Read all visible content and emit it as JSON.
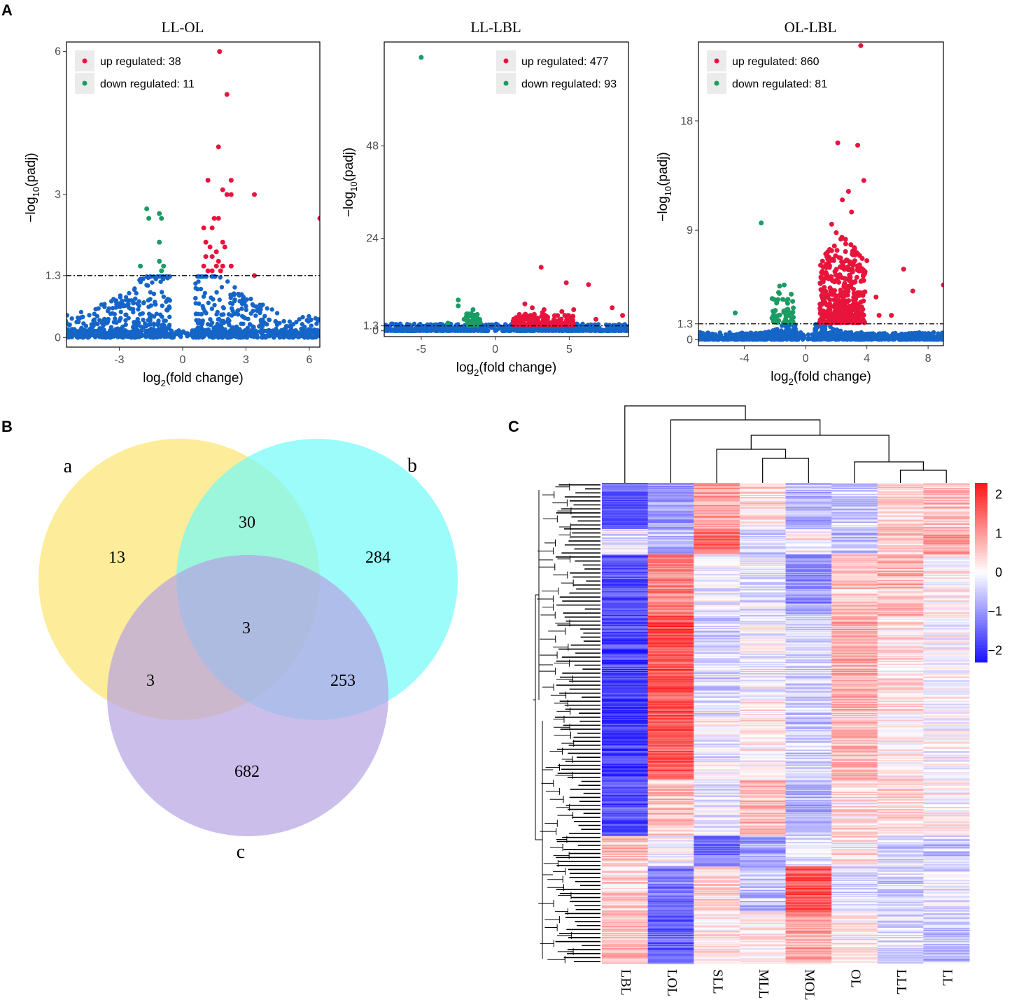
{
  "panels": {
    "a": "A",
    "b": "B",
    "c": "C"
  },
  "volcano": [
    {
      "title": "LL-OL",
      "xlabel": "log2(fold change)",
      "xlabel_main": "log",
      "xlabel_sub": "2",
      "xlabel_rest": "(fold change)",
      "ylabel_main": "−log",
      "ylabel_sub": "10",
      "ylabel_rest": "(padj)",
      "xlim": [
        -5.5,
        6.5
      ],
      "ylim": [
        -0.2,
        6.2
      ],
      "xticks": [
        -3,
        0,
        3,
        6
      ],
      "xtick_labels": [
        "-3",
        "0",
        "3",
        "6"
      ],
      "yticks": [
        0,
        1.3,
        3,
        6
      ],
      "ytick_labels": [
        "0",
        "1.3",
        "3",
        "6"
      ],
      "threshold": 1.3,
      "legend": [
        {
          "label": "up regulated: 38",
          "color": "#e8143c"
        },
        {
          "label": "down regulated: 11",
          "color": "#1a9c64"
        }
      ],
      "up": [
        [
          1.75,
          6.0
        ],
        [
          2.1,
          5.1
        ],
        [
          1.7,
          4.0
        ],
        [
          1.2,
          3.3
        ],
        [
          2.3,
          3.3
        ],
        [
          1.9,
          3.1
        ],
        [
          2.1,
          3.0
        ],
        [
          2.3,
          3.0
        ],
        [
          3.4,
          3.0
        ],
        [
          1.5,
          2.5
        ],
        [
          1.7,
          2.5
        ],
        [
          1.0,
          2.3
        ],
        [
          1.4,
          2.3
        ],
        [
          1.1,
          2.0
        ],
        [
          1.9,
          2.0
        ],
        [
          1.3,
          1.9
        ],
        [
          1.6,
          1.8
        ],
        [
          2.0,
          1.9
        ],
        [
          1.1,
          1.7
        ],
        [
          1.4,
          1.7
        ],
        [
          1.7,
          1.6
        ],
        [
          1.0,
          1.5
        ],
        [
          1.6,
          1.5
        ],
        [
          1.9,
          1.5
        ],
        [
          2.3,
          1.5
        ],
        [
          1.2,
          1.4
        ],
        [
          1.4,
          1.4
        ],
        [
          1.8,
          1.4
        ],
        [
          3.4,
          1.3
        ],
        [
          6.5,
          2.5
        ]
      ],
      "down": [
        [
          -1.7,
          2.7
        ],
        [
          -1.1,
          2.6
        ],
        [
          -1.6,
          2.5
        ],
        [
          -1.0,
          2.5
        ],
        [
          -1.1,
          2.0
        ],
        [
          -1.1,
          1.6
        ],
        [
          -2.0,
          1.5
        ],
        [
          -0.9,
          1.5
        ],
        [
          -1.0,
          1.4
        ]
      ],
      "scatter": {
        "min": 0.1,
        "max": 6.0,
        "spread": 2.0,
        "scale": 1.0,
        "cut": 1.28,
        "count": 700,
        "edge": 2.2,
        "seed": 11
      }
    },
    {
      "title": "LL-LBL",
      "xlabel": "log2(fold change)",
      "xlabel_main": "log",
      "xlabel_sub": "2",
      "xlabel_rest": "(fold change)",
      "ylabel_main": "−log",
      "ylabel_sub": "10",
      "ylabel_rest": "(padj)",
      "xlim": [
        -7.5,
        9
      ],
      "ylim": [
        -1.5,
        75
      ],
      "xticks": [
        -5,
        0,
        5
      ],
      "xtick_labels": [
        "-5",
        "0",
        "5"
      ],
      "yticks": [
        0,
        1.3,
        24,
        48
      ],
      "ytick_labels": [
        "0",
        "1.3",
        "24",
        "48"
      ],
      "threshold": 1.3,
      "legend": [
        {
          "label": "up regulated: 477",
          "color": "#e8143c"
        },
        {
          "label": "down regulated: 93",
          "color": "#1a9c64"
        }
      ],
      "up": [
        [
          3.1,
          16.5
        ],
        [
          4.8,
          12.5
        ],
        [
          6.3,
          12.0
        ],
        [
          7.9,
          6.0
        ],
        [
          2.0,
          7.0
        ],
        [
          2.5,
          6.0
        ],
        [
          3.3,
          5.5
        ],
        [
          4.5,
          5.0
        ],
        [
          5.3,
          5.5
        ],
        [
          6.8,
          3.0
        ],
        [
          8.6,
          4.0
        ],
        [
          2.4,
          4.0
        ],
        [
          1.6,
          3.0
        ]
      ],
      "down": [
        [
          -5.0,
          71.0
        ],
        [
          -2.5,
          8.0
        ],
        [
          -2.5,
          6.5
        ],
        [
          -1.5,
          5.5
        ],
        [
          -2.1,
          3.0
        ],
        [
          -3.2,
          2.0
        ]
      ],
      "upcloud": {
        "xmin": 1.2,
        "xmax": 5.3,
        "ymin": 1.4,
        "ymax": 5.0,
        "count": 180,
        "seed": 5
      },
      "downcloud": {
        "xmin": -2.0,
        "xmax": -1.0,
        "ymin": 1.4,
        "ymax": 4.5,
        "count": 40,
        "seed": 7
      },
      "scatter": {
        "min": 0.1,
        "max": 7.0,
        "spread": 1.3,
        "scale": 1.0,
        "cut": 1.25,
        "count": 700,
        "edge": 3.0,
        "seed": 23
      }
    },
    {
      "title": "OL-LBL",
      "xlabel": "log2(fold change)",
      "xlabel_main": "log",
      "xlabel_sub": "2",
      "xlabel_rest": "(fold change)",
      "ylabel_main": "−log",
      "ylabel_sub": "10",
      "ylabel_rest": "(padj)",
      "xlim": [
        -7,
        9
      ],
      "ylim": [
        -0.5,
        24.5
      ],
      "xticks": [
        -4,
        0,
        4,
        8
      ],
      "xtick_labels": [
        "-4",
        "0",
        "4",
        "8"
      ],
      "yticks": [
        0,
        1.3,
        9,
        18
      ],
      "ytick_labels": [
        "0",
        "1.3",
        "9",
        "18"
      ],
      "threshold": 1.3,
      "legend": [
        {
          "label": "up regulated: 860",
          "color": "#e8143c"
        },
        {
          "label": "down regulated: 81",
          "color": "#1a9c64"
        }
      ],
      "up": [
        [
          3.6,
          24.2
        ],
        [
          2.1,
          16.2
        ],
        [
          3.4,
          16.0
        ],
        [
          3.8,
          13.1
        ],
        [
          2.8,
          12.2
        ],
        [
          2.4,
          11.5
        ],
        [
          3.0,
          10.5
        ],
        [
          1.7,
          9.5
        ],
        [
          2.0,
          8.8
        ],
        [
          3.2,
          7.5
        ],
        [
          4.0,
          6.5
        ],
        [
          6.4,
          5.8
        ],
        [
          7.0,
          4.0
        ],
        [
          9.0,
          4.5
        ],
        [
          4.6,
          3.5
        ],
        [
          4.8,
          2.0
        ],
        [
          5.6,
          2.0
        ],
        [
          2.4,
          6.0
        ],
        [
          1.4,
          7.0
        ]
      ],
      "down": [
        [
          -2.9,
          9.6
        ],
        [
          -4.6,
          2.2
        ],
        [
          -1.7,
          4.4
        ],
        [
          -1.4,
          4.5
        ]
      ],
      "upcloud": {
        "xmin": 0.9,
        "xmax": 3.9,
        "ymin": 1.4,
        "ymax": 8.5,
        "count": 420,
        "seed": 9
      },
      "downcloud": {
        "xmin": -2.2,
        "xmax": -0.8,
        "ymin": 1.4,
        "ymax": 4.0,
        "count": 55,
        "seed": 13
      },
      "scatter": {
        "min": 0.1,
        "max": 7.5,
        "spread": 1.0,
        "scale": 1.0,
        "cut": 1.25,
        "count": 800,
        "edge": 3.5,
        "seed": 31
      }
    }
  ],
  "venn": {
    "labels": {
      "a": "a",
      "b": "b",
      "c": "c"
    },
    "colors": {
      "a": "#fce46e",
      "b": "#71fbf8",
      "c": "#b6a2e2"
    },
    "regions": {
      "a_only": "13",
      "b_only": "284",
      "c_only": "682",
      "ab": "30",
      "ac": "3",
      "bc": "253",
      "abc": "3"
    }
  },
  "chart_data": [
    {
      "type": "scatter",
      "title": "LL-OL",
      "xlabel": "log2(fold change)",
      "ylabel": "-log10(padj)",
      "xlim": [
        -5.5,
        6.5
      ],
      "ylim": [
        0,
        6.2
      ],
      "threshold": 1.3,
      "series": [
        {
          "name": "up regulated: 38",
          "count": 38
        },
        {
          "name": "down regulated: 11",
          "count": 11
        }
      ]
    },
    {
      "type": "scatter",
      "title": "LL-LBL",
      "xlabel": "log2(fold change)",
      "ylabel": "-log10(padj)",
      "xlim": [
        -7.5,
        9
      ],
      "ylim": [
        0,
        75
      ],
      "threshold": 1.3,
      "series": [
        {
          "name": "up regulated: 477",
          "count": 477
        },
        {
          "name": "down regulated: 93",
          "count": 93
        }
      ]
    },
    {
      "type": "scatter",
      "title": "OL-LBL",
      "xlabel": "log2(fold change)",
      "ylabel": "-log10(padj)",
      "xlim": [
        -7,
        9
      ],
      "ylim": [
        0,
        24.5
      ],
      "threshold": 1.3,
      "series": [
        {
          "name": "up regulated: 860",
          "count": 860
        },
        {
          "name": "down regulated: 81",
          "count": 81
        }
      ]
    },
    {
      "type": "venn",
      "sets": [
        "a",
        "b",
        "c"
      ],
      "values": {
        "a": 13,
        "b": 284,
        "c": 682,
        "ab": 30,
        "ac": 3,
        "bc": 253,
        "abc": 3
      }
    },
    {
      "type": "heatmap",
      "columns": [
        "LBL",
        "LOL",
        "SLL",
        "MLL",
        "MOL",
        "OL",
        "LLL",
        "LL"
      ],
      "colorbar": {
        "ticks": [
          2,
          1,
          0,
          -1,
          -2
        ],
        "labels": [
          "2",
          "1",
          "0",
          "−1",
          "−2"
        ],
        "range": [
          -2.3,
          2.3
        ],
        "low": "#1a12ff",
        "mid": "#ffffff",
        "high": "#ff1414"
      },
      "row_blocks": [
        {
          "rows": 45,
          "means": [
            -1.6,
            -0.9,
            0.9,
            0.3,
            -0.7,
            -0.5,
            0.4,
            0.6
          ]
        },
        {
          "rows": 25,
          "means": [
            -0.2,
            -0.7,
            1.5,
            -0.4,
            0.0,
            -0.6,
            0.5,
            1.0
          ]
        },
        {
          "rows": 60,
          "means": [
            -1.7,
            1.3,
            -0.2,
            -0.3,
            -1.0,
            0.5,
            0.7,
            0.1
          ]
        },
        {
          "rows": 80,
          "means": [
            -1.8,
            1.7,
            -0.4,
            -0.1,
            -0.4,
            0.8,
            0.3,
            0.0
          ]
        },
        {
          "rows": 80,
          "means": [
            -1.9,
            1.6,
            -0.2,
            0.2,
            -0.5,
            0.7,
            0.2,
            0.0
          ]
        },
        {
          "rows": 55,
          "means": [
            -1.7,
            0.6,
            -0.3,
            0.7,
            -0.8,
            0.3,
            0.4,
            0.2
          ]
        },
        {
          "rows": 30,
          "means": [
            0.6,
            0.0,
            -1.3,
            -0.9,
            -0.2,
            0.3,
            -0.4,
            -0.5
          ]
        },
        {
          "rows": 45,
          "means": [
            0.4,
            -1.3,
            0.4,
            -0.6,
            1.7,
            -0.3,
            -0.5,
            -0.3
          ]
        },
        {
          "rows": 50,
          "means": [
            0.7,
            -1.5,
            0.3,
            0.2,
            0.9,
            0.2,
            -0.4,
            -0.6
          ]
        }
      ]
    }
  ]
}
